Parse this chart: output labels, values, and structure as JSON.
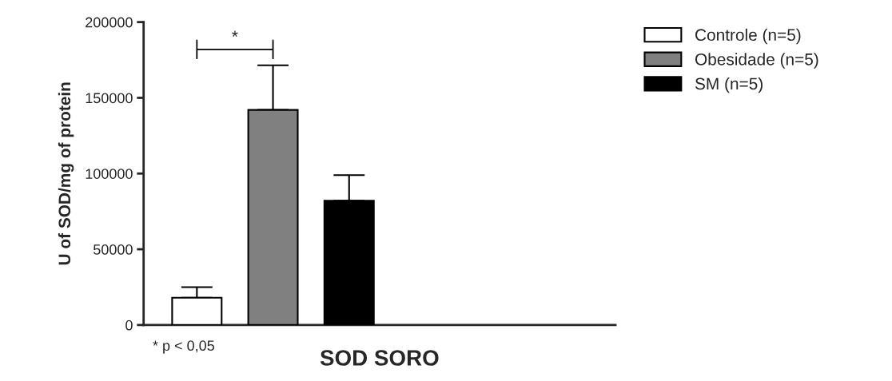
{
  "chart_data": {
    "type": "bar",
    "xlabel": "SOD SORO",
    "ylabel": "U of SOD/mg of protein",
    "categories": [
      null
    ],
    "series": [
      {
        "name": "Controle (n=5)",
        "color": "#ffffff",
        "values": [
          18000
        ],
        "errors": [
          [
            18000,
            25000
          ]
        ]
      },
      {
        "name": "Obesidade (n=5)",
        "color": "#808080",
        "values": [
          142000
        ],
        "errors": [
          [
            142000,
            171500
          ]
        ]
      },
      {
        "name": "SM (n=5)",
        "color": "#000000",
        "values": [
          82000
        ],
        "errors": [
          [
            82000,
            99000
          ]
        ]
      }
    ],
    "ylim": [
      0,
      200000
    ],
    "yticks": [
      0,
      50000,
      100000,
      150000,
      200000
    ],
    "annotations": [
      "*",
      "* p < 0,05"
    ],
    "legend": "top right",
    "grid": false
  }
}
